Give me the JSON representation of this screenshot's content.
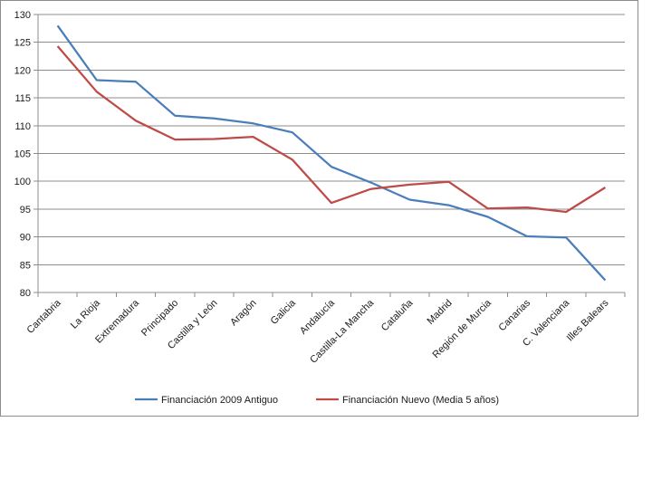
{
  "chart_data": {
    "type": "line",
    "categories": [
      "Cantabria",
      "La Rioja",
      "Extremadura",
      "Principado",
      "Castilla y León",
      "Aragón",
      "Galicia",
      "Andalucía",
      "Castilla-La Mancha",
      "Cataluña",
      "Madrid",
      "Región de Murcia",
      "Canarias",
      "C. Valenciana",
      "Illes Balears"
    ],
    "series": [
      {
        "name": "Financiación 2009 Antiguo",
        "color": "#4a7ebb",
        "values": [
          128,
          118.2,
          117.9,
          111.8,
          111.3,
          110.4,
          108.8,
          102.6,
          99.8,
          96.7,
          95.7,
          93.6,
          90.1,
          89.9,
          82.2
        ]
      },
      {
        "name": "Financiación Nuevo (Media 5 años)",
        "color": "#be4b48",
        "values": [
          124.3,
          116.1,
          110.9,
          107.5,
          107.6,
          108.0,
          103.9,
          96.1,
          98.6,
          99.4,
          99.9,
          95.1,
          95.3,
          94.5,
          98.9
        ]
      }
    ],
    "yticks": [
      80,
      85,
      90,
      95,
      100,
      105,
      110,
      115,
      120,
      125,
      130
    ],
    "ylim": [
      80,
      130
    ],
    "grid": true,
    "legend_position": "bottom"
  }
}
